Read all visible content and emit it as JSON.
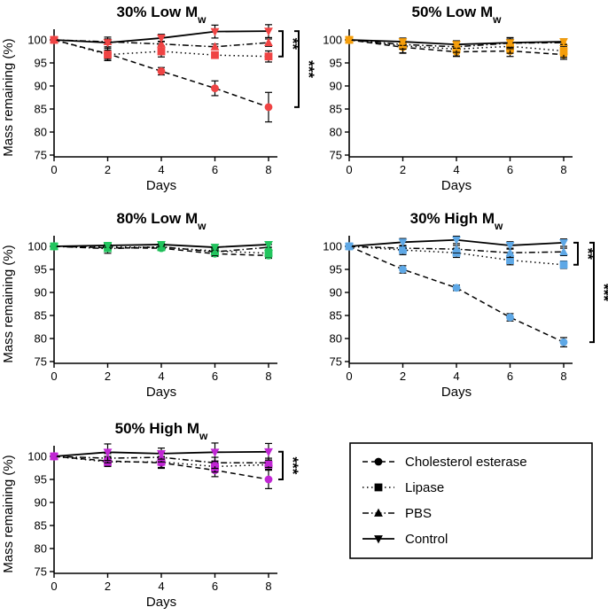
{
  "chart_data": [
    {
      "type": "line",
      "title": "30% Low Mw",
      "title_main": "30% Low M",
      "title_sub": "w",
      "marker_color": "#ef4444",
      "xlabel": "Days",
      "ylabel": "Mass remaining (%)",
      "x": [
        0,
        2,
        4,
        6,
        8
      ],
      "xlim": [
        0,
        8
      ],
      "ylim": [
        75,
        100
      ],
      "yticks": [
        75,
        80,
        85,
        90,
        95,
        100
      ],
      "xticks": [
        0,
        2,
        4,
        6,
        8
      ],
      "series": [
        {
          "name": "Cholesterol esterase",
          "values": [
            100,
            97,
            93.2,
            89.5,
            85.4
          ],
          "errors": [
            0,
            1.5,
            0.8,
            1.6,
            3.2
          ]
        },
        {
          "name": "Lipase",
          "values": [
            100,
            96.8,
            97.5,
            96.7,
            96.4
          ],
          "errors": [
            0,
            1.0,
            1.2,
            0.6,
            1.2
          ]
        },
        {
          "name": "PBS",
          "values": [
            100,
            99.6,
            99.1,
            98.5,
            99.4
          ],
          "errors": [
            0,
            0.6,
            0.6,
            0.6,
            0.8
          ]
        },
        {
          "name": "Control",
          "values": [
            100,
            99.4,
            100.4,
            101.8,
            101.9
          ],
          "errors": [
            0,
            1.2,
            0.8,
            1.4,
            1.4
          ]
        }
      ],
      "annotations": [
        {
          "text": "**",
          "from": 101.9,
          "to": 96.4
        },
        {
          "text": "***",
          "from": 101.9,
          "to": 85.4
        }
      ]
    },
    {
      "type": "line",
      "title": "50% Low Mw",
      "title_main": "50% Low M",
      "title_sub": "w",
      "marker_color": "#f59e0b",
      "xlabel": "Days",
      "ylabel": "",
      "x": [
        0,
        2,
        4,
        6,
        8
      ],
      "xlim": [
        0,
        8
      ],
      "ylim": [
        75,
        100
      ],
      "yticks": [
        75,
        80,
        85,
        90,
        95,
        100
      ],
      "xticks": [
        0,
        2,
        4,
        6,
        8
      ],
      "series": [
        {
          "name": "Cholesterol esterase",
          "values": [
            100,
            98.4,
            97.4,
            97.6,
            96.8
          ],
          "errors": [
            0,
            1.2,
            1.0,
            1.2,
            1.0
          ]
        },
        {
          "name": "Lipase",
          "values": [
            100,
            98.7,
            98.0,
            98.6,
            97.6
          ],
          "errors": [
            0,
            1.6,
            1.5,
            1.5,
            1.4
          ]
        },
        {
          "name": "PBS",
          "values": [
            100,
            99.0,
            98.5,
            99.3,
            99.4
          ],
          "errors": [
            0,
            1.0,
            1.2,
            1.2,
            0.8
          ]
        },
        {
          "name": "Control",
          "values": [
            100,
            99.6,
            99.0,
            99.4,
            99.6
          ],
          "errors": [
            0,
            0.8,
            0.8,
            1.0,
            0.6
          ]
        }
      ],
      "annotations": []
    },
    {
      "type": "line",
      "title": "80% Low Mw",
      "title_main": "80% Low M",
      "title_sub": "w",
      "marker_color": "#22c55e",
      "xlabel": "Days",
      "ylabel": "Mass remaining (%)",
      "x": [
        0,
        2,
        4,
        6,
        8
      ],
      "xlim": [
        0,
        8
      ],
      "ylim": [
        75,
        100
      ],
      "yticks": [
        75,
        80,
        85,
        90,
        95,
        100
      ],
      "xticks": [
        0,
        2,
        4,
        6,
        8
      ],
      "series": [
        {
          "name": "Cholesterol esterase",
          "values": [
            100,
            99.7,
            99.6,
            98.4,
            98.0
          ],
          "errors": [
            0,
            0.4,
            0.4,
            0.6,
            0.6
          ]
        },
        {
          "name": "Lipase",
          "values": [
            100,
            99.9,
            99.8,
            99.0,
            98.5
          ],
          "errors": [
            0,
            0.6,
            0.6,
            0.8,
            0.8
          ]
        },
        {
          "name": "PBS",
          "values": [
            100,
            99.5,
            99.9,
            98.8,
            99.8
          ],
          "errors": [
            0,
            1.0,
            0.6,
            0.8,
            0.6
          ]
        },
        {
          "name": "Control",
          "values": [
            100,
            100.2,
            100.4,
            99.8,
            100.4
          ],
          "errors": [
            0,
            0.4,
            0.4,
            0.6,
            0.6
          ]
        }
      ],
      "annotations": []
    },
    {
      "type": "line",
      "title": "30% High Mw",
      "title_main": "30% High M",
      "title_sub": "w",
      "marker_color": "#5ea8e6",
      "xlabel": "Days",
      "ylabel": "",
      "x": [
        0,
        2,
        4,
        6,
        8
      ],
      "xlim": [
        0,
        8
      ],
      "ylim": [
        75,
        100
      ],
      "yticks": [
        75,
        80,
        85,
        90,
        95,
        100
      ],
      "xticks": [
        0,
        2,
        4,
        6,
        8
      ],
      "series": [
        {
          "name": "Cholesterol esterase",
          "values": [
            100,
            95.0,
            91.0,
            84.6,
            79.2
          ],
          "errors": [
            0,
            0.8,
            0.6,
            0.8,
            1.0
          ]
        },
        {
          "name": "Lipase",
          "values": [
            100,
            99.2,
            98.6,
            97.0,
            96.0
          ],
          "errors": [
            0,
            1.0,
            1.0,
            1.0,
            0.8
          ]
        },
        {
          "name": "PBS",
          "values": [
            100,
            99.6,
            99.4,
            98.6,
            98.8
          ],
          "errors": [
            0,
            0.6,
            0.8,
            1.0,
            0.8
          ]
        },
        {
          "name": "Control",
          "values": [
            100,
            100.9,
            101.4,
            100.2,
            100.8
          ],
          "errors": [
            0,
            0.8,
            0.8,
            0.8,
            0.8
          ]
        }
      ],
      "annotations": [
        {
          "text": "**",
          "from": 100.8,
          "to": 96.0
        },
        {
          "text": "***",
          "from": 100.8,
          "to": 79.2
        }
      ]
    },
    {
      "type": "line",
      "title": "50% High Mw",
      "title_main": "50% High M",
      "title_sub": "w",
      "marker_color": "#c026d3",
      "xlabel": "Days",
      "ylabel": "Mass remaining (%)",
      "x": [
        0,
        2,
        4,
        6,
        8
      ],
      "xlim": [
        0,
        8
      ],
      "ylim": [
        75,
        100
      ],
      "yticks": [
        75,
        80,
        85,
        90,
        95,
        100
      ],
      "xticks": [
        0,
        2,
        4,
        6,
        8
      ],
      "series": [
        {
          "name": "Cholesterol esterase",
          "values": [
            100,
            99.0,
            98.6,
            97.0,
            95.0
          ],
          "errors": [
            0,
            1.0,
            1.2,
            1.4,
            2.0
          ]
        },
        {
          "name": "Lipase",
          "values": [
            100,
            98.8,
            98.8,
            97.8,
            98.2
          ],
          "errors": [
            0,
            1.0,
            1.2,
            1.2,
            1.0
          ]
        },
        {
          "name": "PBS",
          "values": [
            100,
            99.6,
            99.8,
            98.6,
            98.6
          ],
          "errors": [
            0,
            1.0,
            1.0,
            1.2,
            1.0
          ]
        },
        {
          "name": "Control",
          "values": [
            100,
            100.9,
            100.6,
            100.9,
            101.0
          ],
          "errors": [
            0,
            1.8,
            1.2,
            2.0,
            1.8
          ]
        }
      ],
      "annotations": [
        {
          "text": "***",
          "from": 101.0,
          "to": 95.0
        }
      ]
    }
  ],
  "legend": {
    "items": [
      {
        "label": "Cholesterol esterase",
        "marker": "circle",
        "dash": "dashed"
      },
      {
        "label": "Lipase",
        "marker": "square",
        "dash": "dotted"
      },
      {
        "label": "PBS",
        "marker": "triangle-up",
        "dash": "dashdot"
      },
      {
        "label": "Control",
        "marker": "triangle-down",
        "dash": "solid"
      }
    ]
  }
}
